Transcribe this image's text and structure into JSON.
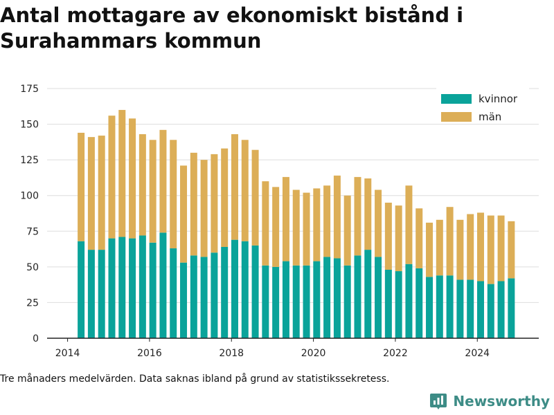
{
  "header": {
    "title": "Antal mottagare av ekonomiskt bistånd i Surahammars kommun"
  },
  "footer": {
    "note": "Tre månaders medelvärden. Data saknas ibland på grund av statistikssekretess.",
    "brand": "Newsworthy",
    "brand_icon": "bar-chart-logo-icon"
  },
  "colors": {
    "kvinnor": "#0aa39a",
    "man": "#dcae57",
    "grid": "#dddddd",
    "axis": "#222222",
    "brand": "#3d8c86"
  },
  "chart_data": {
    "type": "bar",
    "stacked": true,
    "title": "Antal mottagare av ekonomiskt bistånd i Surahammars kommun",
    "xlabel": "",
    "ylabel": "",
    "x_unit": "year",
    "xlim": [
      2013.5,
      2025.5
    ],
    "ylim": [
      0,
      175
    ],
    "xticks": [
      2014,
      2016,
      2018,
      2020,
      2022,
      2024
    ],
    "yticks": [
      0,
      25,
      50,
      75,
      100,
      125,
      150,
      175
    ],
    "grid": true,
    "legend": "top-right",
    "x": [
      2014.33,
      2014.58,
      2014.83,
      2015.08,
      2015.33,
      2015.58,
      2015.83,
      2016.08,
      2016.33,
      2016.58,
      2016.83,
      2017.08,
      2017.33,
      2017.58,
      2017.83,
      2018.08,
      2018.33,
      2018.58,
      2018.83,
      2019.08,
      2019.33,
      2019.58,
      2019.83,
      2020.08,
      2020.33,
      2020.58,
      2020.83,
      2021.08,
      2021.33,
      2021.58,
      2021.83,
      2022.08,
      2022.33,
      2022.58,
      2022.83,
      2023.08,
      2023.33,
      2023.58,
      2023.83,
      2024.08,
      2024.33,
      2024.58,
      2024.83
    ],
    "series": [
      {
        "name": "kvinnor",
        "values": [
          68,
          62,
          62,
          70,
          71,
          70,
          72,
          67,
          74,
          63,
          53,
          58,
          57,
          60,
          64,
          69,
          68,
          65,
          51,
          50,
          54,
          51,
          51,
          54,
          57,
          56,
          51,
          58,
          62,
          57,
          48,
          47,
          52,
          49,
          43,
          44,
          44,
          41,
          41,
          40,
          38,
          40,
          42
        ]
      },
      {
        "name": "män",
        "values": [
          76,
          79,
          80,
          86,
          89,
          84,
          71,
          72,
          72,
          76,
          68,
          72,
          68,
          69,
          69,
          74,
          71,
          67,
          59,
          56,
          59,
          53,
          51,
          51,
          50,
          58,
          49,
          55,
          50,
          47,
          47,
          46,
          55,
          42,
          38,
          39,
          48,
          42,
          46,
          48,
          48,
          46,
          40
        ]
      }
    ]
  }
}
